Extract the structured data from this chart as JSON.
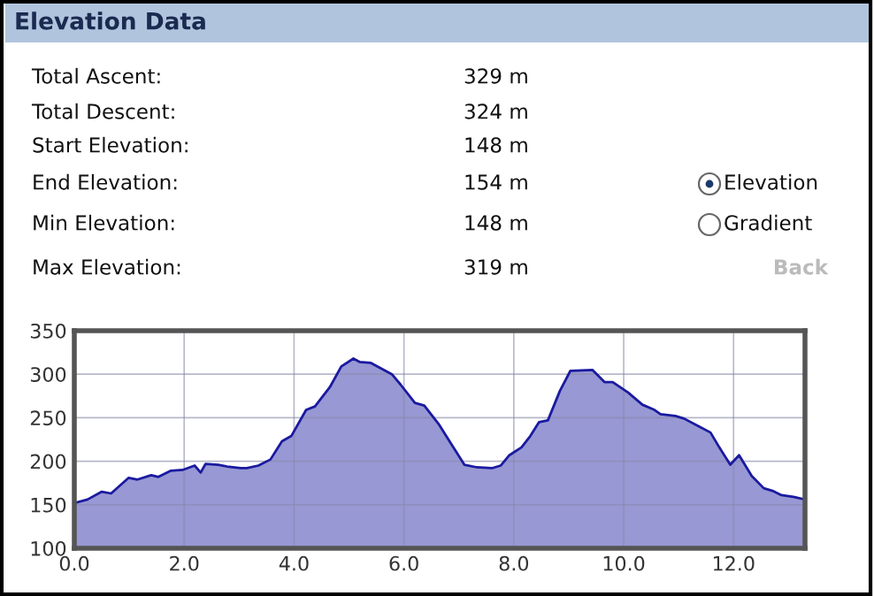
{
  "chart_data": [
    {
      "type": "other",
      "title": "Elevation Data",
      "annotations": [
        "Total Ascent:",
        "329 m",
        "Total Descent:",
        "324 m",
        "Start Elevation:",
        "148 m",
        "End Elevation:",
        "154 m",
        "Min Elevation:",
        "148 m",
        "Max Elevation:",
        "319 m",
        "Elevation",
        "Gradient",
        "Back"
      ]
    },
    {
      "type": "area",
      "color": "#1a1aa0",
      "x": [
        0,
        0.24,
        0.5,
        0.67,
        0.99,
        1.15,
        1.4,
        1.53,
        1.75,
        1.97,
        2.19,
        2.3,
        2.39,
        2.62,
        2.78,
        3.03,
        3.14,
        3.35,
        3.57,
        3.78,
        3.95,
        4.22,
        4.38,
        4.65,
        4.86,
        5.08,
        5.2,
        5.4,
        5.78,
        5.94,
        6.2,
        6.37,
        6.63,
        6.85,
        7.1,
        7.33,
        7.6,
        7.76,
        7.92,
        8.14,
        8.3,
        8.46,
        8.62,
        8.84,
        9.03,
        9.43,
        9.65,
        9.8,
        10.08,
        10.34,
        10.56,
        10.67,
        10.94,
        11.1,
        11.37,
        11.58,
        11.74,
        11.94,
        12.1,
        12.33,
        12.55,
        12.71,
        12.87,
        13.09,
        13.3
      ],
      "values": [
        152,
        156,
        165,
        163,
        181,
        179,
        184,
        182,
        189,
        190,
        195,
        187,
        197,
        196,
        194,
        192,
        192,
        195,
        202,
        223,
        229,
        259,
        263,
        285,
        309,
        318,
        314,
        313,
        300,
        288,
        267,
        264,
        243,
        221,
        196,
        193,
        192,
        195,
        207,
        216,
        229,
        245,
        247,
        281,
        304,
        305,
        291,
        291,
        279,
        265,
        259,
        254,
        252,
        249,
        240,
        233,
        216,
        196,
        207,
        183,
        169,
        166,
        161,
        159,
        156
      ],
      "xlim": [
        0,
        13.3
      ],
      "ylim": [
        100,
        350
      ],
      "xticks": [
        {
          "value": 0,
          "label": "0.0"
        },
        {
          "value": 2,
          "label": "2.0"
        },
        {
          "value": 4,
          "label": "4.0"
        },
        {
          "value": 6,
          "label": "6.0"
        },
        {
          "value": 8,
          "label": "8.0"
        },
        {
          "value": 10,
          "label": "10.0"
        },
        {
          "value": 12,
          "label": "12.0"
        }
      ],
      "yticks": [
        100,
        150,
        200,
        250,
        300,
        350
      ],
      "grid": true
    }
  ]
}
